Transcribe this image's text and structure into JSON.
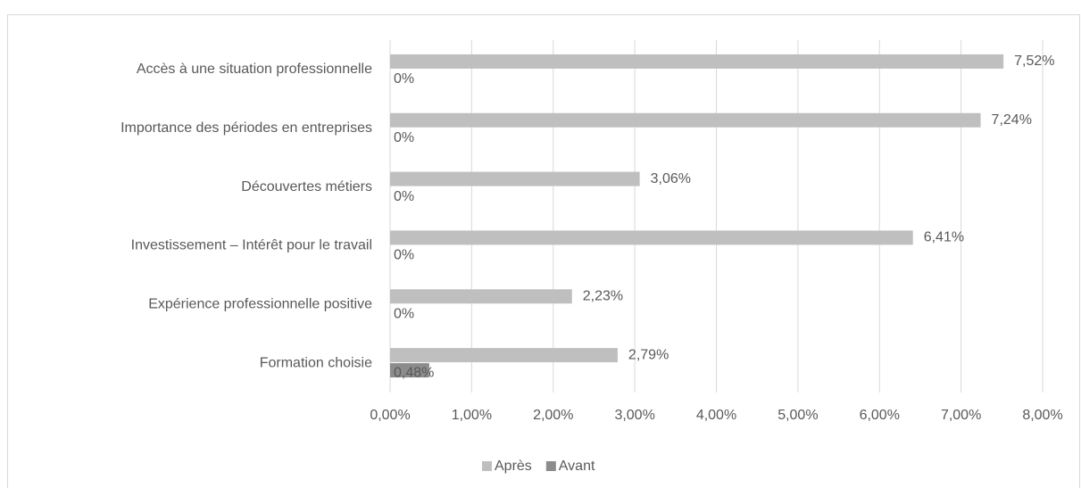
{
  "chart_data": {
    "type": "bar",
    "orientation": "horizontal",
    "categories": [
      "Accès à une situation professionnelle",
      "Importance des périodes en entreprises",
      "Découvertes métiers",
      "Investissement – Intérêt pour le travail",
      "Expérience professionnelle positive",
      "Formation choisie"
    ],
    "series": [
      {
        "name": "Après",
        "color": "#bfbfbf",
        "values": [
          7.52,
          7.24,
          3.06,
          6.41,
          2.23,
          2.79
        ],
        "value_labels": [
          "7,52%",
          "7,24%",
          "3,06%",
          "6,41%",
          "2,23%",
          "2,79%"
        ]
      },
      {
        "name": "Avant",
        "color": "#8c8c8c",
        "values": [
          0,
          0,
          0,
          0,
          0,
          0.48
        ],
        "value_labels": [
          "0%",
          "0%",
          "0%",
          "0%",
          "0%",
          "0,48%"
        ]
      }
    ],
    "xlim": [
      0,
      8
    ],
    "xticks": [
      {
        "value": 0,
        "label": "0,00%"
      },
      {
        "value": 1,
        "label": "1,00%"
      },
      {
        "value": 2,
        "label": "2,00%"
      },
      {
        "value": 3,
        "label": "3,00%"
      },
      {
        "value": 4,
        "label": "4,00%"
      },
      {
        "value": 5,
        "label": "5,00%"
      },
      {
        "value": 6,
        "label": "6,00%"
      },
      {
        "value": 7,
        "label": "7,00%"
      },
      {
        "value": 8,
        "label": "8,00%"
      }
    ],
    "grid": true,
    "legend": "bottom"
  }
}
